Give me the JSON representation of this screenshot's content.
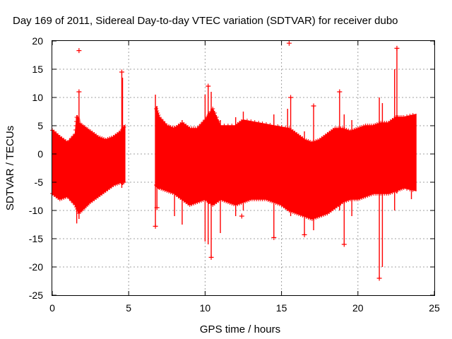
{
  "chart_data": {
    "type": "scatter",
    "title": "Day 169 of 2011, Sidereal Day-to-day VTEC variation (SDTVAR) for receiver dubo",
    "xlabel": "GPS time / hours",
    "ylabel": "SDTVAR / TECUs",
    "xlim": [
      0,
      25
    ],
    "ylim": [
      -25,
      20
    ],
    "xticks": [
      0,
      5,
      10,
      15,
      20,
      25
    ],
    "yticks": [
      -25,
      -20,
      -15,
      -10,
      -5,
      0,
      5,
      10,
      15,
      20
    ],
    "grid": true,
    "marker": "plus",
    "color": "#ff0000",
    "segments": [
      {
        "name": "segment-1",
        "upper": [
          [
            0.0,
            4.2
          ],
          [
            0.5,
            3.0
          ],
          [
            1.0,
            2.0
          ],
          [
            1.5,
            3.5
          ],
          [
            1.6,
            6.5
          ],
          [
            1.65,
            6.5
          ],
          [
            1.75,
            5.5
          ],
          [
            2.5,
            4.0
          ],
          [
            3.0,
            3.0
          ],
          [
            3.5,
            2.5
          ],
          [
            4.0,
            3.0
          ],
          [
            4.5,
            4.0
          ],
          [
            4.75,
            5.0
          ]
        ],
        "lower": [
          [
            0.0,
            -7.0
          ],
          [
            0.5,
            -8.0
          ],
          [
            1.0,
            -7.5
          ],
          [
            1.5,
            -9.0
          ],
          [
            1.75,
            -10.5
          ],
          [
            2.5,
            -8.5
          ],
          [
            3.0,
            -7.5
          ],
          [
            3.5,
            -6.5
          ],
          [
            4.0,
            -5.5
          ],
          [
            4.5,
            -5.0
          ],
          [
            4.75,
            -5.0
          ]
        ]
      },
      {
        "name": "segment-2",
        "upper": [
          [
            6.8,
            8.0
          ],
          [
            7.0,
            6.5
          ],
          [
            7.5,
            5.0
          ],
          [
            8.0,
            4.5
          ],
          [
            8.5,
            5.5
          ],
          [
            9.0,
            4.5
          ],
          [
            9.5,
            4.5
          ],
          [
            10.0,
            6.0
          ],
          [
            10.5,
            8.0
          ],
          [
            11.0,
            5.0
          ],
          [
            12.0,
            5.0
          ],
          [
            12.5,
            6.0
          ],
          [
            13.5,
            5.5
          ],
          [
            14.5,
            5.0
          ],
          [
            15.5,
            4.5
          ],
          [
            16.0,
            3.5
          ],
          [
            16.5,
            2.5
          ],
          [
            17.0,
            2.0
          ],
          [
            17.5,
            2.5
          ],
          [
            18.0,
            3.5
          ],
          [
            18.5,
            4.5
          ],
          [
            19.0,
            4.5
          ],
          [
            19.5,
            4.0
          ],
          [
            20.0,
            4.5
          ],
          [
            20.5,
            5.0
          ],
          [
            21.0,
            5.0
          ],
          [
            21.5,
            5.5
          ],
          [
            22.0,
            5.5
          ],
          [
            22.5,
            6.5
          ],
          [
            23.0,
            6.5
          ],
          [
            23.8,
            7.0
          ]
        ],
        "lower": [
          [
            6.8,
            -5.5
          ],
          [
            7.0,
            -6.0
          ],
          [
            7.5,
            -6.5
          ],
          [
            8.0,
            -7.0
          ],
          [
            8.5,
            -8.0
          ],
          [
            9.0,
            -9.0
          ],
          [
            9.5,
            -8.5
          ],
          [
            10.0,
            -8.0
          ],
          [
            10.5,
            -9.0
          ],
          [
            11.0,
            -8.0
          ],
          [
            11.5,
            -8.5
          ],
          [
            12.0,
            -9.0
          ],
          [
            12.5,
            -8.5
          ],
          [
            13.0,
            -8.0
          ],
          [
            13.5,
            -8.0
          ],
          [
            14.0,
            -8.0
          ],
          [
            14.5,
            -8.5
          ],
          [
            15.0,
            -9.0
          ],
          [
            15.5,
            -10.0
          ],
          [
            16.0,
            -10.5
          ],
          [
            16.5,
            -11.0
          ],
          [
            17.0,
            -11.5
          ],
          [
            17.5,
            -11.0
          ],
          [
            18.0,
            -10.5
          ],
          [
            18.5,
            -9.5
          ],
          [
            19.0,
            -8.5
          ],
          [
            19.5,
            -8.0
          ],
          [
            20.0,
            -8.0
          ],
          [
            20.5,
            -7.5
          ],
          [
            21.0,
            -7.0
          ],
          [
            21.5,
            -7.0
          ],
          [
            22.0,
            -7.0
          ],
          [
            22.5,
            -6.5
          ],
          [
            23.0,
            -6.0
          ],
          [
            23.8,
            -6.5
          ]
        ]
      }
    ],
    "spikes": [
      [
        1.6,
        6.5,
        -12.3
      ],
      [
        1.75,
        11.0,
        -11.5
      ],
      [
        4.55,
        14.5,
        -6.0
      ],
      [
        4.6,
        13.5,
        -5.5
      ],
      [
        6.75,
        10.5,
        -12.8
      ],
      [
        6.85,
        8.5,
        -9.5
      ],
      [
        8.0,
        5.0,
        -11.0
      ],
      [
        8.5,
        6.0,
        -12.5
      ],
      [
        10.0,
        10.5,
        -15.5
      ],
      [
        10.2,
        12.0,
        -16.0
      ],
      [
        10.4,
        11.0,
        -18.3
      ],
      [
        11.0,
        6.0,
        -14.0
      ],
      [
        12.0,
        6.5,
        -11.0
      ],
      [
        12.5,
        7.5,
        -10.0
      ],
      [
        14.5,
        7.0,
        -14.8
      ],
      [
        15.4,
        8.0,
        -10.0
      ],
      [
        15.6,
        10.0,
        -11.0
      ],
      [
        16.5,
        4.0,
        -14.3
      ],
      [
        17.1,
        8.5,
        -13.5
      ],
      [
        18.8,
        11.0,
        -10.0
      ],
      [
        19.1,
        7.0,
        -16.0
      ],
      [
        19.6,
        6.0,
        -11.0
      ],
      [
        21.4,
        10.0,
        -22.0
      ],
      [
        21.6,
        9.0,
        -20.0
      ],
      [
        22.4,
        15.0,
        -10.0
      ],
      [
        22.55,
        18.7,
        -7.0
      ],
      [
        23.5,
        4.5,
        -8.0
      ]
    ],
    "outliers": [
      [
        1.75,
        18.3
      ],
      [
        15.5,
        19.6
      ],
      [
        21.4,
        -22.0
      ],
      [
        6.75,
        -12.8
      ],
      [
        6.85,
        -9.5
      ],
      [
        10.4,
        -18.3
      ],
      [
        14.5,
        -14.8
      ],
      [
        16.5,
        -14.3
      ],
      [
        19.1,
        -16.0
      ],
      [
        4.55,
        14.5
      ],
      [
        22.55,
        18.7
      ],
      [
        18.8,
        11.0
      ],
      [
        17.1,
        8.5
      ],
      [
        15.6,
        10.0
      ],
      [
        10.2,
        12.0
      ],
      [
        1.75,
        11.0
      ],
      [
        12.4,
        -11.0
      ]
    ]
  }
}
